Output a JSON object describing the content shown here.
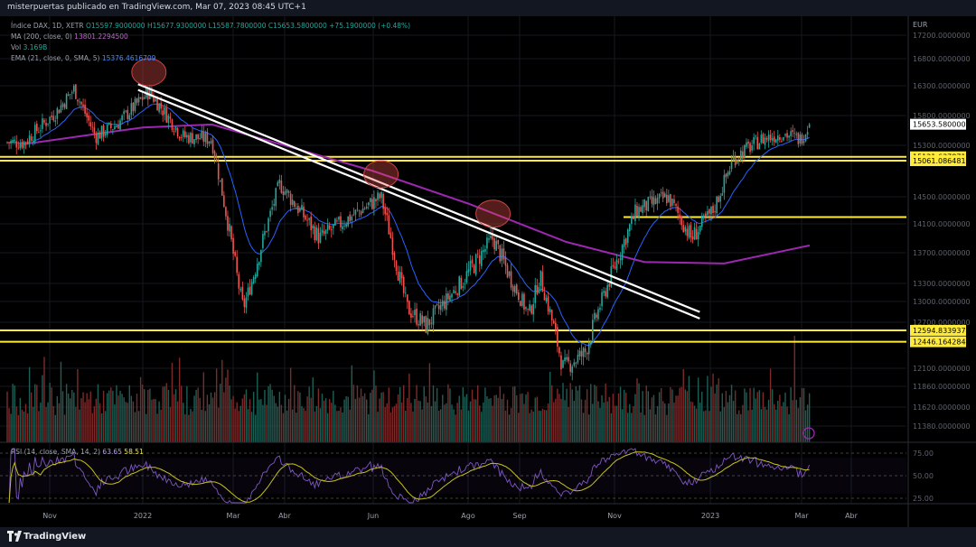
{
  "header": {
    "publisher_line": "misterpuertas publicado en TradingView.com, Mar 07, 2023 08:45 UTC+1"
  },
  "footer": {
    "brand": "TradingView"
  },
  "legend": {
    "symbol": "Índice DAX, 1D, XETR",
    "open": "O15597.9000000",
    "high": "H15677.9300000",
    "low": "L15587.7800000",
    "close": "C15653.5800000",
    "change": "+75.1900000 (+0.48%)",
    "ma_label": "MA (200, close, 0)",
    "ma_value": "13801.2294500",
    "vol_label": "Vol",
    "vol_value": "3.169B",
    "ema_label": "EMA (21, close, 0, SMA, 5)",
    "ema_value": "15376.4616709",
    "rsi_label": "RSI (14, close, SMA, 14, 2)",
    "rsi_value": "63.65",
    "rsi_sma_value": "58.51"
  },
  "colors": {
    "up": "#26a69a",
    "down": "#ef5350",
    "ma200": "#9c27b0",
    "ema21": "#2962ff",
    "support_lines": "#ffeb3b",
    "trendline": "#ffffff",
    "rsi": "#7e57c2",
    "rsi_sma": "#c8c21a",
    "last_price_bg": "#ffffff"
  },
  "chart_data": [
    {
      "type": "candlestick",
      "title": "Índice DAX, 1D, XETR",
      "currency": "EUR",
      "y_ticks": [
        17200,
        16800,
        16300,
        15800,
        15300,
        14500,
        14100,
        13700,
        13300,
        13000,
        12700,
        12100,
        11860,
        11620,
        11380
      ],
      "y_tick_labels": [
        "17200.0000000",
        "16800.0000000",
        "16300.0000000",
        "15800.0000000",
        "15300.0000000",
        "14500.0000000",
        "14100.0000000",
        "13700.0000000",
        "13300.0000000",
        "13000.0000000",
        "12700.0000000",
        "12100.0000000",
        "11860.0000000",
        "11620.0000000",
        "11380.0000000"
      ],
      "x_tick_labels": [
        "Nov",
        "2022",
        "Mar",
        "Abr",
        "Jun",
        "Ago",
        "Sep",
        "Nov",
        "2023",
        "Mar",
        "Abr"
      ],
      "horizontal_levels": [
        {
          "value": 15121.6378719,
          "label": "15121.6378719"
        },
        {
          "value": 15061.0864817,
          "label": "15061.0864817"
        },
        {
          "value": 14200,
          "label": ""
        },
        {
          "value": 12594.8339374,
          "label": "12594.8339374"
        },
        {
          "value": 12446.1642844,
          "label": "12446.1642844"
        }
      ],
      "last_price": {
        "value": 15653.58,
        "label": "15653.5800000"
      },
      "price_path_close": [
        {
          "date": "2021-10-15",
          "value": 15350
        },
        {
          "date": "2021-11-05",
          "value": 15850
        },
        {
          "date": "2021-11-17",
          "value": 16250
        },
        {
          "date": "2021-12-01",
          "value": 15450
        },
        {
          "date": "2021-12-15",
          "value": 15650
        },
        {
          "date": "2022-01-05",
          "value": 16200
        },
        {
          "date": "2022-01-27",
          "value": 15450
        },
        {
          "date": "2022-02-15",
          "value": 15400
        },
        {
          "date": "2022-03-07",
          "value": 12900
        },
        {
          "date": "2022-03-29",
          "value": 14700
        },
        {
          "date": "2022-04-25",
          "value": 13900
        },
        {
          "date": "2022-06-06",
          "value": 14500
        },
        {
          "date": "2022-06-23",
          "value": 12900
        },
        {
          "date": "2022-07-05",
          "value": 12650
        },
        {
          "date": "2022-08-16",
          "value": 13900
        },
        {
          "date": "2022-09-07",
          "value": 12800
        },
        {
          "date": "2022-09-14",
          "value": 13400
        },
        {
          "date": "2022-09-29",
          "value": 12100
        },
        {
          "date": "2022-10-13",
          "value": 12300
        },
        {
          "date": "2022-10-28",
          "value": 13300
        },
        {
          "date": "2022-11-15",
          "value": 14300
        },
        {
          "date": "2022-12-05",
          "value": 14500
        },
        {
          "date": "2022-12-20",
          "value": 13900
        },
        {
          "date": "2023-01-03",
          "value": 14300
        },
        {
          "date": "2023-01-16",
          "value": 15100
        },
        {
          "date": "2023-02-03",
          "value": 15400
        },
        {
          "date": "2023-02-17",
          "value": 15500
        },
        {
          "date": "2023-02-28",
          "value": 15400
        },
        {
          "date": "2023-03-06",
          "value": 15653.58
        }
      ],
      "ma200": [
        {
          "date": "2021-10-15",
          "value": 15320
        },
        {
          "date": "2021-11-20",
          "value": 15450
        },
        {
          "date": "2022-01-01",
          "value": 15600
        },
        {
          "date": "2022-02-15",
          "value": 15650
        },
        {
          "date": "2022-04-01",
          "value": 15300
        },
        {
          "date": "2022-06-01",
          "value": 14900
        },
        {
          "date": "2022-08-01",
          "value": 14400
        },
        {
          "date": "2022-10-01",
          "value": 13850
        },
        {
          "date": "2022-11-20",
          "value": 13580
        },
        {
          "date": "2023-01-10",
          "value": 13560
        },
        {
          "date": "2023-03-06",
          "value": 13801.23
        }
      ],
      "trendlines": [
        {
          "from": {
            "date": "2022-01-05",
            "value": 16330
          },
          "to": {
            "date": "2022-11-15",
            "value": 13050
          }
        },
        {
          "from": {
            "date": "2022-01-05",
            "value": 16230
          },
          "to": {
            "date": "2022-11-15",
            "value": 12950
          }
        }
      ],
      "highlighted_touches": [
        "2022-01-05",
        "2022-06-06",
        "2022-08-16"
      ]
    },
    {
      "type": "line",
      "title": "RSI (14, close, SMA, 14, 2)",
      "y_ticks": [
        75,
        50,
        25
      ],
      "y_tick_labels": [
        "75.00",
        "50.00",
        "25.00"
      ],
      "series": [
        {
          "name": "RSI",
          "last": 63.65
        },
        {
          "name": "SMA",
          "last": 58.51
        }
      ]
    }
  ]
}
